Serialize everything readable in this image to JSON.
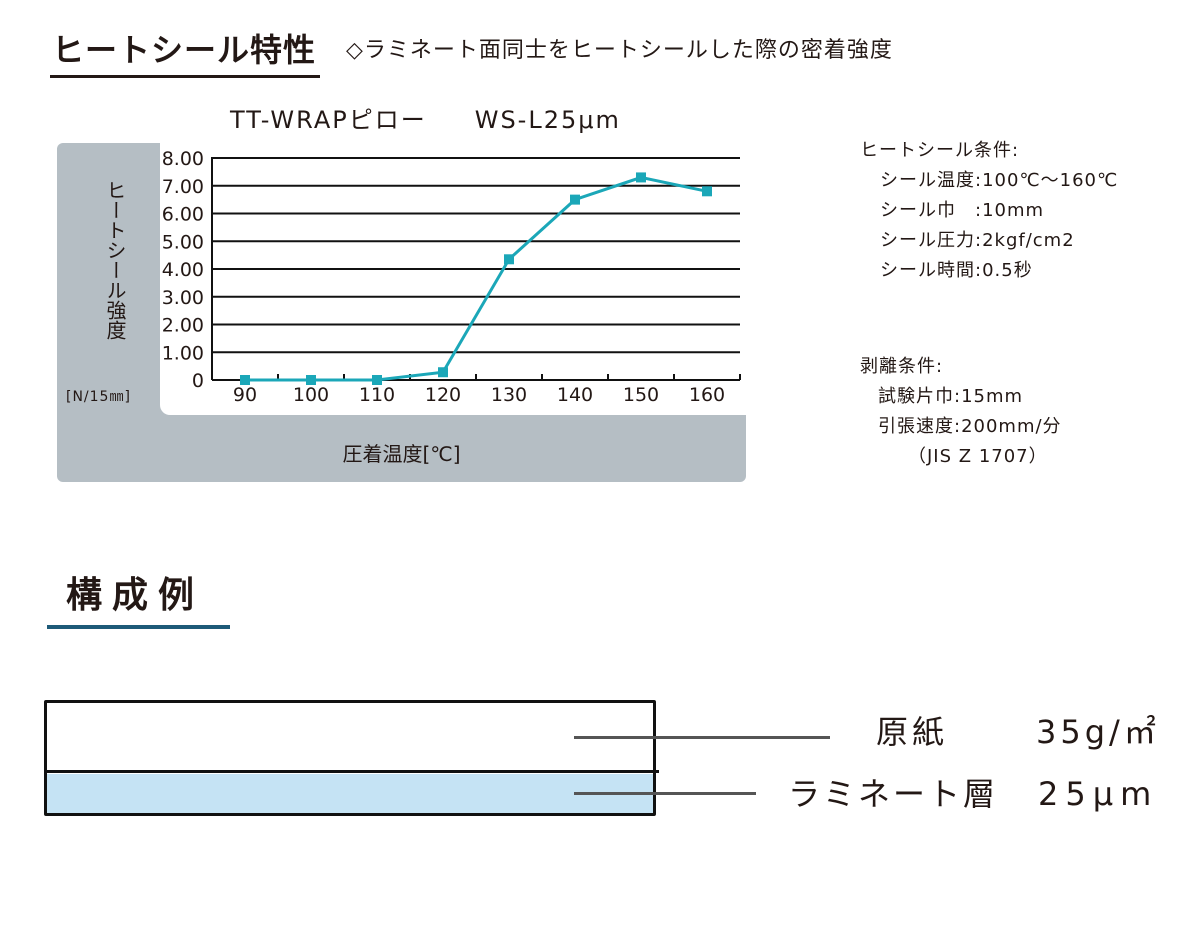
{
  "header": {
    "title": "ヒートシール特性",
    "subtitle": "◇ラミネート面同士をヒートシールした際の密着強度"
  },
  "chart_data": {
    "type": "line",
    "title": "TT-WRAPピロー　WS-L25μm",
    "title_parts": [
      "TT-WRAPピロー",
      "WS-L25μm"
    ],
    "xlabel": "圧着温度[℃]",
    "ylabel": "ヒートシール強度",
    "yunit": "[N/15㎜]",
    "categories": [
      90,
      100,
      110,
      120,
      130,
      140,
      150,
      160
    ],
    "x_tick_labels": [
      "90",
      "100",
      "110",
      "120",
      "130",
      "140",
      "150",
      "160"
    ],
    "y_tick_labels": [
      "8.00",
      "7.00",
      "6.00",
      "5.00",
      "4.00",
      "3.00",
      "2.00",
      "1.00",
      "0"
    ],
    "series": [
      {
        "name": "WS-L25μm",
        "color": "#1ba7b8",
        "marker": "square",
        "values": [
          0,
          0,
          0,
          0.28,
          4.35,
          6.5,
          7.3,
          6.8
        ]
      }
    ],
    "ylim": [
      0,
      8
    ],
    "grid": true,
    "legend": false
  },
  "conditions": {
    "heat_seal_title": "ヒートシール条件:",
    "heat_seal": [
      "シール温度:100℃～160℃",
      "シール巾　:10mm",
      "シール圧力:2kgf/cm2",
      "シール時間:0.5秒"
    ],
    "peel_title": "剥離条件:",
    "peel": [
      "試験片巾:15mm",
      "引張速度:200mm/分",
      "（JIS Z 1707）"
    ]
  },
  "composition": {
    "title": "構成例",
    "layers": [
      {
        "name": "原紙",
        "value": "35g/㎡",
        "color": "#ffffff"
      },
      {
        "name": "ラミネート層",
        "value": "25μm",
        "color": "#c5e3f4"
      }
    ]
  },
  "colors": {
    "series": "#1ba7b8",
    "panel": "#b5bec4",
    "section_underline": "#1d5a78",
    "laminate": "#c5e3f4"
  }
}
